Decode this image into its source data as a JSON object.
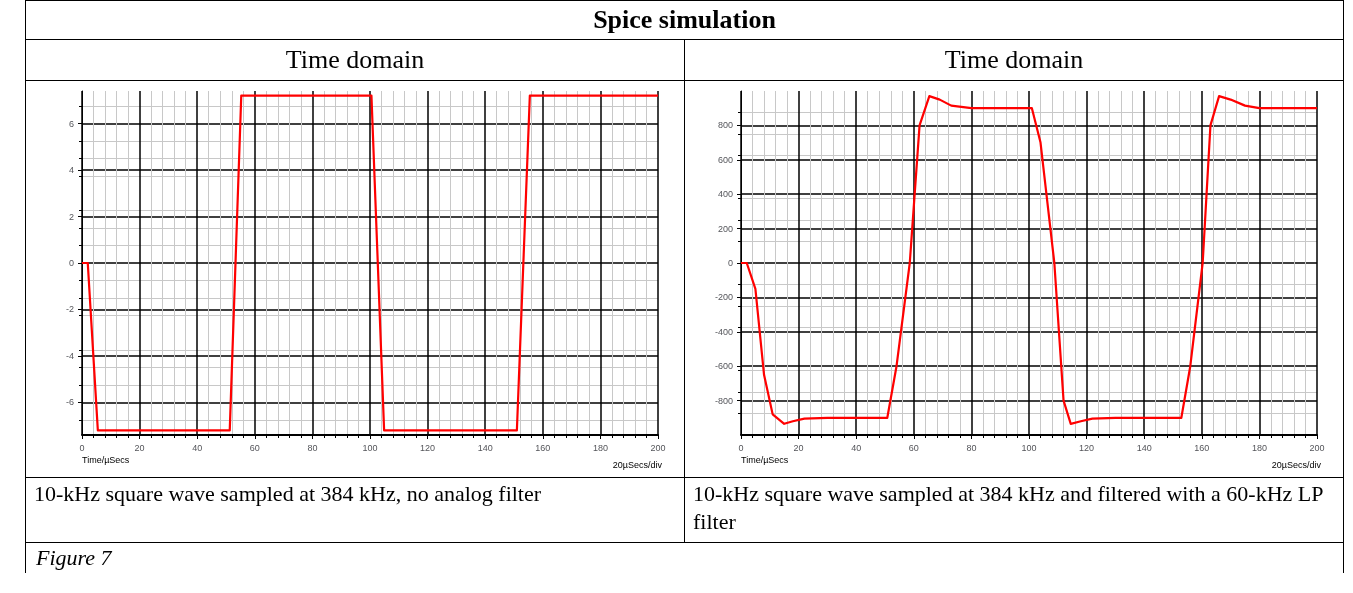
{
  "chart_data": [
    {
      "type": "other",
      "title": "Spice simulation",
      "annotations": [
        "Figure 7"
      ]
    },
    {
      "type": "line",
      "title": "Time domain",
      "xlabel": "Time/µSecs",
      "annotations": [
        "20µSecs/div",
        "10-kHz square wave sampled at 384 kHz, no analog filter"
      ],
      "xlim": [
        0,
        200
      ],
      "xticks": [
        0,
        20,
        40,
        60,
        80,
        100,
        120,
        140,
        160,
        180,
        200
      ],
      "ylim": [
        -7.4,
        7.4
      ],
      "yticks": [
        -6,
        -4,
        -2,
        0,
        2,
        4,
        6
      ],
      "grid": true,
      "marker": "none",
      "line_style": "solid",
      "series": [
        {
          "color": "#ff0000",
          "x": [
            0,
            2,
            5.5,
            51.3,
            55.3,
            100.5,
            104.9,
            151,
            155.5,
            200
          ],
          "values": [
            0,
            0,
            -7.2,
            -7.2,
            7.2,
            7.2,
            -7.2,
            -7.2,
            7.2,
            7.2
          ]
        }
      ]
    },
    {
      "type": "line",
      "title": "Time domain",
      "xlabel": "Time/µSecs",
      "annotations": [
        "20µSecs/div",
        "10-kHz square wave sampled at 384 kHz and filtered with a 60-kHz LP filter"
      ],
      "xlim": [
        0,
        200
      ],
      "xticks": [
        0,
        20,
        40,
        60,
        80,
        100,
        120,
        140,
        160,
        180,
        200
      ],
      "ylim": [
        -1000,
        1000
      ],
      "yticks": [
        -800,
        -600,
        -400,
        -200,
        0,
        200,
        400,
        600,
        800
      ],
      "grid": true,
      "marker": "none",
      "line_style": "solid",
      "series": [
        {
          "color": "#ff0000",
          "x": [
            0,
            2,
            5,
            8,
            11,
            15,
            18,
            22,
            30,
            50.8,
            54,
            58.6,
            62,
            65.4,
            69,
            73,
            80,
            101,
            104,
            108.8,
            112,
            114.5,
            118,
            122,
            130,
            152.9,
            156,
            160.3,
            163,
            166,
            170,
            175,
            180,
            200
          ],
          "values": [
            0,
            0,
            -150,
            -650,
            -880,
            -935,
            -920,
            -905,
            -900,
            -900,
            -600,
            0,
            800,
            970,
            950,
            915,
            900,
            900,
            700,
            0,
            -800,
            -935,
            -920,
            -905,
            -900,
            -900,
            -600,
            0,
            800,
            970,
            950,
            915,
            900,
            900
          ]
        }
      ]
    }
  ]
}
